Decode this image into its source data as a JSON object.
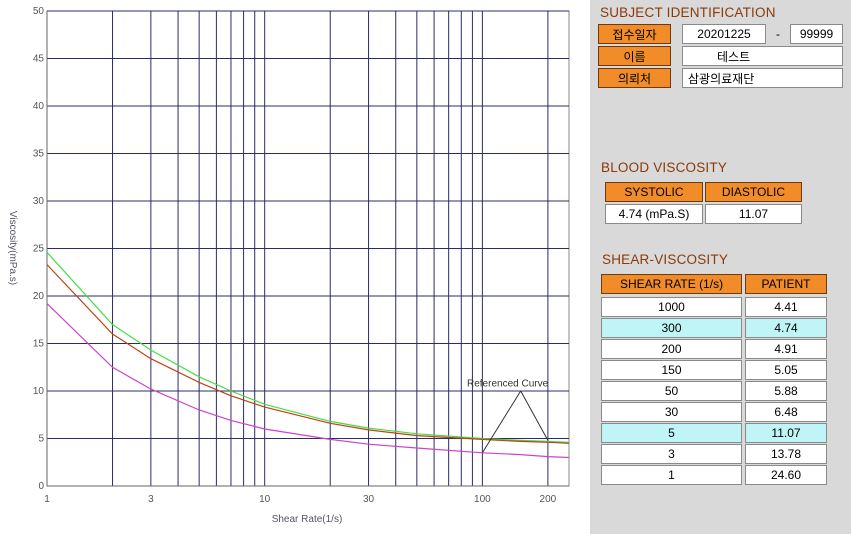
{
  "colors": {
    "grid": "#2b2b6b",
    "reference_1": "#44dd44",
    "reference_2": "#bb4411",
    "patient_curve": "#cc44cc",
    "label_orange": "#f28c28",
    "section_title": "#8a3a0a",
    "highlight_row": "#bff5f7",
    "panel_bg": "#d9d9d9"
  },
  "chart_data": {
    "type": "line",
    "xscale": "log",
    "xlim": [
      1,
      250
    ],
    "ylim": [
      0,
      50
    ],
    "xlabel": "Shear Rate(1/s)",
    "ylabel": "Viscosity(mPa.s)",
    "xticks": [
      1,
      3,
      10,
      30,
      100,
      200
    ],
    "xtick_labels": [
      "1",
      "3",
      "10",
      "30",
      "100",
      "200"
    ],
    "x_gridlines": [
      1,
      2,
      3,
      4,
      5,
      6,
      7,
      8,
      9,
      10,
      20,
      30,
      40,
      50,
      60,
      70,
      80,
      90,
      100,
      200
    ],
    "yticks": [
      0,
      5,
      10,
      15,
      20,
      25,
      30,
      35,
      40,
      45,
      50
    ],
    "grid": true,
    "annotation": {
      "text": "Referenced Curve",
      "points": [
        [
          100,
          3.5
        ],
        [
          200,
          4.8
        ]
      ],
      "label_at": [
        60,
        10.5
      ],
      "apex": [
        150,
        10
      ]
    },
    "series": [
      {
        "x": [
          1,
          2,
          3,
          5,
          7,
          10,
          20,
          30,
          50,
          100,
          150,
          200,
          250
        ],
        "y": [
          24.6,
          17.0,
          14.3,
          11.5,
          10.0,
          8.6,
          6.8,
          6.1,
          5.5,
          5.0,
          4.8,
          4.7,
          4.6
        ]
      },
      {
        "x": [
          1,
          2,
          3,
          5,
          7,
          10,
          20,
          30,
          50,
          100,
          150,
          200,
          250
        ],
        "y": [
          23.3,
          16.0,
          13.4,
          10.9,
          9.5,
          8.3,
          6.6,
          5.9,
          5.3,
          4.9,
          4.7,
          4.6,
          4.5
        ]
      },
      {
        "x": [
          1,
          2,
          3,
          5,
          7,
          10,
          20,
          30,
          50,
          100,
          150,
          200,
          250
        ],
        "y": [
          19.2,
          12.5,
          10.2,
          8.0,
          6.9,
          6.0,
          4.9,
          4.4,
          4.0,
          3.5,
          3.3,
          3.1,
          3.0
        ]
      }
    ]
  },
  "subject": {
    "title": "SUBJECT IDENTIFICATION",
    "receipt_label": "접수일자",
    "receipt_date": "20201225",
    "separator": "-",
    "receipt_no": "99999",
    "name_label": "이름",
    "name_value": "테스트",
    "institution_label": "의뢰처",
    "institution_value": "삼광의료재단"
  },
  "blood": {
    "title": "BLOOD VISCOSITY",
    "systolic_label": "SYSTOLIC",
    "diastolic_label": "DIASTOLIC",
    "systolic_value": "4.74 (mPa.S)",
    "diastolic_value": "11.07"
  },
  "shear": {
    "title": "SHEAR-VISCOSITY",
    "col_rate": "SHEAR RATE (1/s)",
    "col_patient": "PATIENT",
    "rows": [
      {
        "rate": "1000",
        "patient": "4.41",
        "highlight": false
      },
      {
        "rate": "300",
        "patient": "4.74",
        "highlight": true
      },
      {
        "rate": "200",
        "patient": "4.91",
        "highlight": false
      },
      {
        "rate": "150",
        "patient": "5.05",
        "highlight": false
      },
      {
        "rate": "50",
        "patient": "5.88",
        "highlight": false
      },
      {
        "rate": "30",
        "patient": "6.48",
        "highlight": false
      },
      {
        "rate": "5",
        "patient": "11.07",
        "highlight": true
      },
      {
        "rate": "3",
        "patient": "13.78",
        "highlight": false
      },
      {
        "rate": "1",
        "patient": "24.60",
        "highlight": false
      }
    ]
  }
}
